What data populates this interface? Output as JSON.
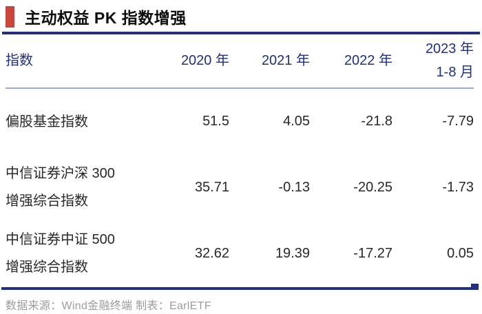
{
  "title": "主动权益 PK 指数增强",
  "footer": "数据来源：Wind金融终端 制表：EarlETF",
  "colors": {
    "accent_red": "#c9463d",
    "navy_blue": "#1f3080",
    "header_separator": "#9aa8d0",
    "body_text": "#282828",
    "footer_gray": "#9c9c9c"
  },
  "chart_data": {
    "type": "table",
    "title": "主动权益 PK 指数增强",
    "index_column_header": "指数",
    "column_headers": [
      {
        "lines": [
          "2020 年"
        ]
      },
      {
        "lines": [
          "2021 年"
        ]
      },
      {
        "lines": [
          "2022 年"
        ]
      },
      {
        "lines": [
          "2023 年",
          "1-8 月"
        ]
      }
    ],
    "rows": [
      {
        "name": "偏股基金指数",
        "name_lines": [
          "偏股基金指数"
        ],
        "values": [
          "51.5",
          "4.05",
          "-21.8",
          "-7.79"
        ]
      },
      {
        "name": "中信证券沪深 300 增强综合指数",
        "name_lines": [
          "中信证券沪深 300",
          "增强综合指数"
        ],
        "values": [
          "35.71",
          "-0.13",
          "-20.25",
          "-1.73"
        ]
      },
      {
        "name": "中信证券中证 500 增强综合指数",
        "name_lines": [
          "中信证券中证 500",
          "增强综合指数"
        ],
        "values": [
          "32.62",
          "19.39",
          "-17.27",
          "0.05"
        ]
      }
    ],
    "source_note": "数据来源：Wind金融终端 制表：EarlETF"
  }
}
